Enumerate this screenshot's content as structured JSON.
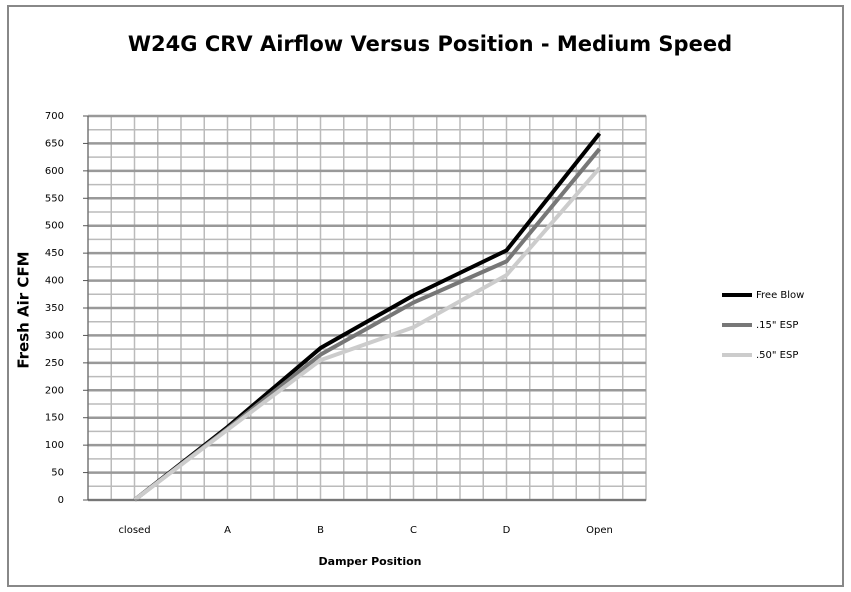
{
  "chart_data": {
    "type": "line",
    "title": "W24G CRV Airflow Versus Position -  Medium Speed",
    "x_label": "Damper Position",
    "y_label": "Fresh Air CFM",
    "categories": [
      "closed",
      "A",
      "B",
      "C",
      "D",
      "Open"
    ],
    "series": [
      {
        "name": "Free Blow",
        "color": "#000000",
        "values": [
          0,
          133,
          277,
          373,
          455,
          668
        ]
      },
      {
        "name": ".15\" ESP",
        "color": "#777777",
        "values": [
          0,
          130,
          265,
          360,
          435,
          640
        ]
      },
      {
        "name": ".50\" ESP",
        "color": "#cccccc",
        "values": [
          0,
          128,
          255,
          315,
          410,
          605
        ]
      }
    ],
    "ylim": [
      0,
      700
    ],
    "yticks": [
      0,
      50,
      100,
      150,
      200,
      250,
      300,
      350,
      400,
      450,
      500,
      550,
      600,
      650,
      700
    ],
    "grid": true,
    "legend": "right"
  }
}
